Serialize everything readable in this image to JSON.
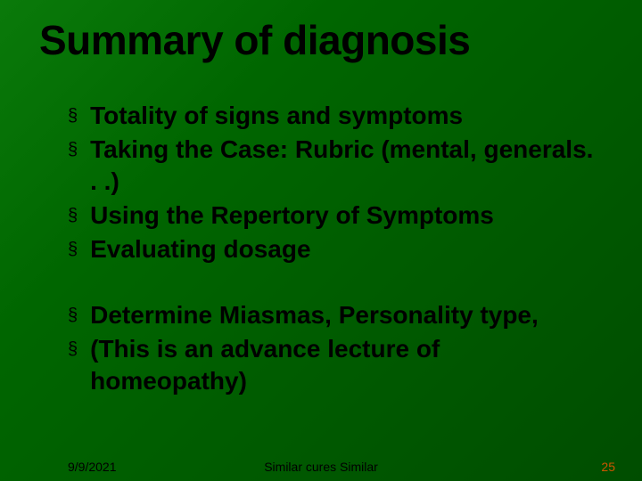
{
  "slide": {
    "background_gradient": [
      "#0a7a0a",
      "#006600",
      "#004d00"
    ],
    "title": "Summary of diagnosis",
    "title_color": "#000000",
    "title_fontsize": 46,
    "bullet_marker": "§",
    "bullet_color": "#000000",
    "bullet_text_color": "#000000",
    "bullet_fontsize": 28,
    "groups": [
      {
        "items": [
          "Totality of signs and symptoms",
          "Taking the Case: Rubric (mental, generals. . .)",
          "Using the Repertory of Symptoms",
          "Evaluating dosage"
        ]
      },
      {
        "items": [
          "Determine Miasmas, Personality type,",
          "(This is an advance lecture of homeopathy)"
        ]
      }
    ],
    "footer": {
      "date": "9/9/2021",
      "center": "Similar cures Similar",
      "page": "25",
      "date_color": "#000000",
      "center_color": "#000000",
      "page_color": "#cc5500",
      "fontsize": 14
    }
  }
}
